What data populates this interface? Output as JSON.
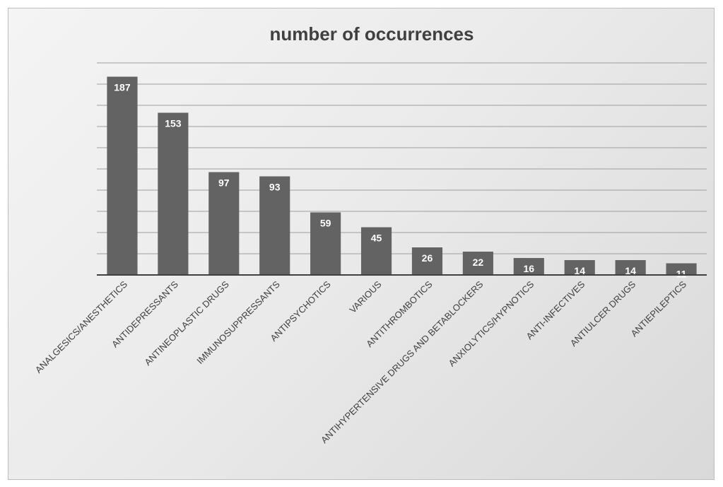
{
  "chart_data": {
    "type": "bar",
    "title": "number of occurrences",
    "xlabel": "",
    "ylabel": "",
    "categories": [
      "ANALGESICS/ANESTHETICS",
      "ANTIDEPRESSANTS",
      "ANTINEOPLASTIC DRUGS",
      "IMMUNOSUPPRESSANTS",
      "ANTIPSYCHOTICS",
      "VARIOUS",
      "ANTITHROMBOTICS",
      "ANTIHYPERTENSIVE DRUGS AND BETABLOCKERS",
      "ANXIOLYTICS/HYPNOTICS",
      "ANTI-INFECTIVES",
      "ANTIULCER DRUGS",
      "ANTIEPILEPTICS"
    ],
    "values": [
      187,
      153,
      97,
      93,
      59,
      45,
      26,
      22,
      16,
      14,
      14,
      11
    ],
    "ylim": [
      0,
      200
    ],
    "grid_step": 20,
    "grid": true,
    "legend": "none",
    "data_labels": true,
    "y_tick_labels_shown": false,
    "colors": {
      "bar": "#636363",
      "label": "#ffffff",
      "text": "#404040",
      "grid": "#9e9e9e"
    }
  }
}
